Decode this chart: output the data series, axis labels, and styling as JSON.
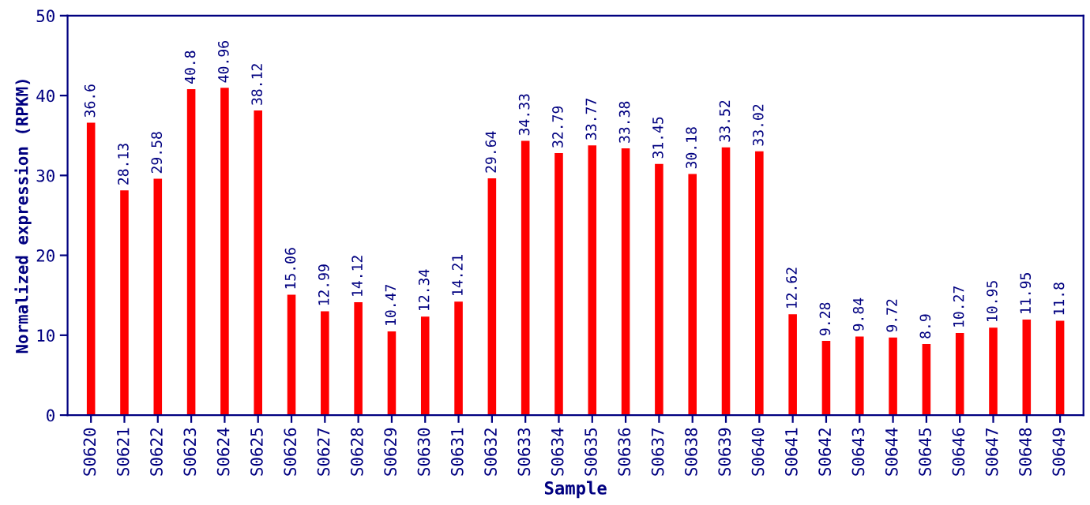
{
  "chart_data": {
    "type": "bar",
    "xlabel": "Sample",
    "ylabel": "Normalized expression (RPKM)",
    "categories": [
      "S0620",
      "S0621",
      "S0622",
      "S0623",
      "S0624",
      "S0625",
      "S0626",
      "S0627",
      "S0628",
      "S0629",
      "S0630",
      "S0631",
      "S0632",
      "S0633",
      "S0634",
      "S0635",
      "S0636",
      "S0637",
      "S0638",
      "S0639",
      "S0640",
      "S0641",
      "S0642",
      "S0643",
      "S0644",
      "S0645",
      "S0646",
      "S0647",
      "S0648",
      "S0649"
    ],
    "values": [
      36.6,
      28.13,
      29.58,
      40.8,
      40.96,
      38.12,
      15.06,
      12.99,
      14.12,
      10.47,
      12.34,
      14.21,
      29.64,
      34.33,
      32.79,
      33.77,
      33.38,
      31.45,
      30.18,
      33.52,
      33.02,
      12.62,
      9.28,
      9.84,
      9.72,
      8.9,
      10.27,
      10.95,
      11.95,
      11.8
    ],
    "color": "#ff0000",
    "data_labels": true,
    "ylim": [
      0,
      50
    ],
    "yticks": [
      0,
      10,
      20,
      30,
      40,
      50
    ],
    "grid": false,
    "legend": false
  }
}
